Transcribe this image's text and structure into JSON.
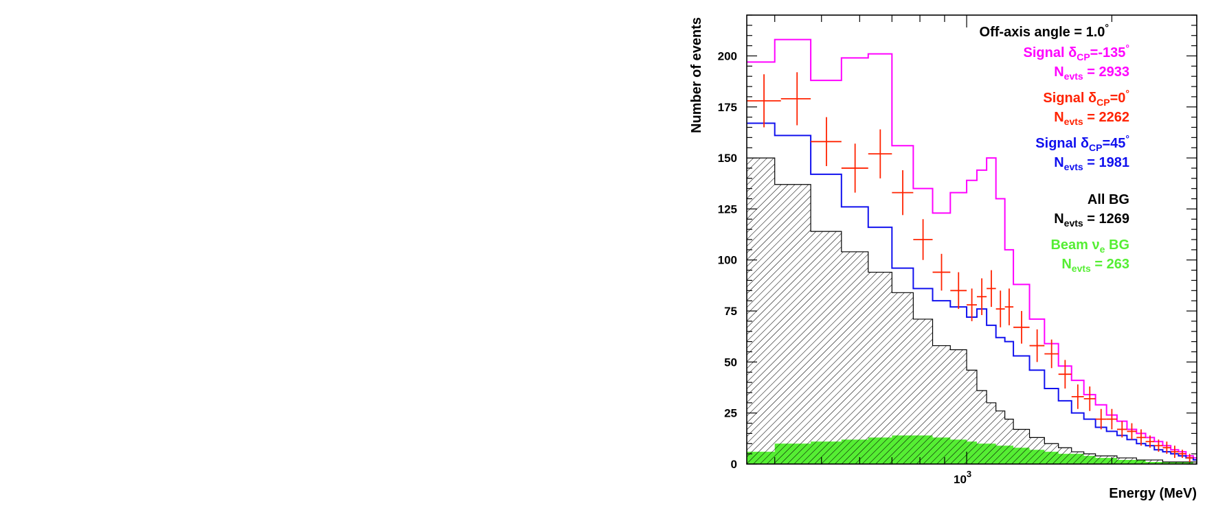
{
  "chart_data": {
    "type": "histogram",
    "xlabel": "Energy (MeV)",
    "ylabel": "Number of events",
    "xscale": "log",
    "xlim": [
      350,
      3000
    ],
    "ylim": [
      0,
      220
    ],
    "x_ticks": [
      {
        "value": 1000,
        "base": "10",
        "exp": "3"
      }
    ],
    "y_ticks": [
      0,
      25,
      50,
      75,
      100,
      125,
      150,
      175,
      200
    ],
    "grid": false,
    "legend_position": "top-right",
    "annotation": "Off-axis angle = 1.0",
    "annotation_degree": "°",
    "series": [
      {
        "label_prefix": "Signal ",
        "symbol": "δ",
        "sub": "CP",
        "label_suffix": "=-135",
        "degree": "°",
        "count_prefix": "N",
        "count_sub": "evts",
        "count_value": "= 2933",
        "color": "#ff00ff",
        "style": "step",
        "edges": [
          350,
          400,
          475,
          550,
          625,
          700,
          775,
          850,
          925,
          1000,
          1050,
          1100,
          1150,
          1200,
          1250,
          1350,
          1450,
          1550,
          1650,
          1750,
          1850,
          1950,
          2050,
          2150,
          2250,
          2350,
          2450,
          2550,
          2650,
          2750,
          2850,
          2950,
          3000
        ],
        "values": [
          197,
          208,
          188,
          199,
          201,
          156,
          135,
          123,
          133,
          139,
          144,
          150,
          130,
          105,
          88,
          71,
          59,
          48,
          41,
          34,
          29,
          24,
          21,
          17,
          15,
          13,
          11,
          9,
          7,
          6,
          4,
          3
        ]
      },
      {
        "label_prefix": "Signal ",
        "symbol": "δ",
        "sub": "CP",
        "label_suffix": "=0",
        "degree": "°",
        "count_prefix": "N",
        "count_sub": "evts",
        "count_value": "= 2262",
        "color": "#ff2200",
        "style": "errorbar",
        "points": [
          {
            "x": 380,
            "y": 178,
            "xerr": [
              350,
              412
            ],
            "yerr": 13
          },
          {
            "x": 445,
            "y": 179,
            "xerr": [
              412,
              475
            ],
            "yerr": 13
          },
          {
            "x": 512,
            "y": 158,
            "xerr": [
              475,
              550
            ],
            "yerr": 12
          },
          {
            "x": 587,
            "y": 145,
            "xerr": [
              550,
              625
            ],
            "yerr": 12
          },
          {
            "x": 662,
            "y": 152,
            "xerr": [
              625,
              700
            ],
            "yerr": 12
          },
          {
            "x": 737,
            "y": 133,
            "xerr": [
              700,
              775
            ],
            "yerr": 11
          },
          {
            "x": 812,
            "y": 110,
            "xerr": [
              775,
              850
            ],
            "yerr": 10
          },
          {
            "x": 887,
            "y": 94,
            "xerr": [
              850,
              925
            ],
            "yerr": 9
          },
          {
            "x": 962,
            "y": 85,
            "xerr": [
              925,
              1000
            ],
            "yerr": 9
          },
          {
            "x": 1025,
            "y": 78,
            "xerr": [
              1000,
              1050
            ],
            "yerr": 8
          },
          {
            "x": 1075,
            "y": 82,
            "xerr": [
              1050,
              1100
            ],
            "yerr": 9
          },
          {
            "x": 1125,
            "y": 86,
            "xerr": [
              1100,
              1150
            ],
            "yerr": 9
          },
          {
            "x": 1175,
            "y": 76,
            "xerr": [
              1150,
              1200
            ],
            "yerr": 9
          },
          {
            "x": 1225,
            "y": 77,
            "xerr": [
              1200,
              1250
            ],
            "yerr": 9
          },
          {
            "x": 1300,
            "y": 67,
            "xerr": [
              1250,
              1350
            ],
            "yerr": 8
          },
          {
            "x": 1400,
            "y": 58,
            "xerr": [
              1350,
              1450
            ],
            "yerr": 8
          },
          {
            "x": 1500,
            "y": 54,
            "xerr": [
              1450,
              1550
            ],
            "yerr": 7
          },
          {
            "x": 1600,
            "y": 44,
            "xerr": [
              1550,
              1650
            ],
            "yerr": 7
          },
          {
            "x": 1700,
            "y": 33,
            "xerr": [
              1650,
              1750
            ],
            "yerr": 6
          },
          {
            "x": 1800,
            "y": 32,
            "xerr": [
              1750,
              1850
            ],
            "yerr": 6
          },
          {
            "x": 1900,
            "y": 22,
            "xerr": [
              1850,
              1950
            ],
            "yerr": 5
          },
          {
            "x": 2000,
            "y": 22,
            "xerr": [
              1950,
              2050
            ],
            "yerr": 5
          },
          {
            "x": 2100,
            "y": 17,
            "xerr": [
              2050,
              2150
            ],
            "yerr": 4
          },
          {
            "x": 2200,
            "y": 16,
            "xerr": [
              2150,
              2250
            ],
            "yerr": 4
          },
          {
            "x": 2300,
            "y": 13,
            "xerr": [
              2250,
              2350
            ],
            "yerr": 4
          },
          {
            "x": 2400,
            "y": 11,
            "xerr": [
              2350,
              2450
            ],
            "yerr": 3
          },
          {
            "x": 2500,
            "y": 9,
            "xerr": [
              2450,
              2550
            ],
            "yerr": 3
          },
          {
            "x": 2600,
            "y": 8,
            "xerr": [
              2550,
              2650
            ],
            "yerr": 3
          },
          {
            "x": 2700,
            "y": 6,
            "xerr": [
              2650,
              2750
            ],
            "yerr": 3
          },
          {
            "x": 2800,
            "y": 5,
            "xerr": [
              2750,
              2850
            ],
            "yerr": 2
          },
          {
            "x": 2900,
            "y": 3,
            "xerr": [
              2850,
              2950
            ],
            "yerr": 2
          }
        ]
      },
      {
        "label_prefix": "Signal ",
        "symbol": "δ",
        "sub": "CP",
        "label_suffix": "=45",
        "degree": "°",
        "count_prefix": "N",
        "count_sub": "evts",
        "count_value": "= 1981",
        "color": "#1010ee",
        "style": "step",
        "edges": [
          350,
          400,
          475,
          550,
          625,
          700,
          775,
          850,
          925,
          1000,
          1050,
          1100,
          1150,
          1200,
          1250,
          1350,
          1450,
          1550,
          1650,
          1750,
          1850,
          1950,
          2050,
          2150,
          2250,
          2350,
          2450,
          2550,
          2650,
          2750,
          2850,
          2950,
          3000
        ],
        "values": [
          167,
          161,
          142,
          126,
          116,
          96,
          86,
          80,
          77,
          72,
          76,
          68,
          62,
          60,
          53,
          46,
          37,
          31,
          25,
          22,
          18,
          16,
          14,
          12,
          10,
          9,
          7,
          6,
          5,
          4,
          3,
          2
        ]
      },
      {
        "label": "All BG",
        "count_prefix": "N",
        "count_sub": "evts",
        "count_value": "= 1269",
        "color": "#000000",
        "style": "hatched",
        "edges": [
          350,
          400,
          475,
          550,
          625,
          700,
          775,
          850,
          925,
          1000,
          1050,
          1100,
          1150,
          1200,
          1250,
          1350,
          1450,
          1550,
          1650,
          1750,
          1850,
          1950,
          2050,
          2150,
          2250,
          2350,
          2450,
          2550,
          2650,
          2750,
          2850,
          2950,
          3000
        ],
        "values": [
          150,
          137,
          114,
          104,
          94,
          84,
          71,
          58,
          56,
          46,
          36,
          30,
          26,
          22,
          17,
          13,
          10,
          8,
          6,
          5,
          4,
          4,
          3,
          3,
          2,
          2,
          2,
          1,
          1,
          1,
          1,
          1
        ]
      },
      {
        "label_prefix": "Beam ",
        "symbol": "ν",
        "sub": "e",
        "label_suffix": " BG",
        "count_prefix": "N",
        "count_sub": "evts",
        "count_value": "= 263",
        "color": "#55ee33",
        "style": "filled",
        "edges": [
          350,
          400,
          475,
          550,
          625,
          700,
          775,
          850,
          925,
          1000,
          1050,
          1100,
          1150,
          1200,
          1250,
          1350,
          1450,
          1550,
          1650,
          1750,
          1850,
          1950,
          2050,
          2150,
          2250,
          2350,
          2450,
          2550,
          2650,
          2750,
          2850,
          2950,
          3000
        ],
        "values": [
          6,
          10,
          11,
          12,
          13,
          14,
          14,
          13,
          12,
          11,
          10,
          10,
          9,
          9,
          8,
          7,
          6,
          5,
          5,
          4,
          3,
          3,
          2,
          2,
          2,
          1,
          1,
          1,
          1,
          1,
          1,
          0
        ]
      }
    ]
  }
}
